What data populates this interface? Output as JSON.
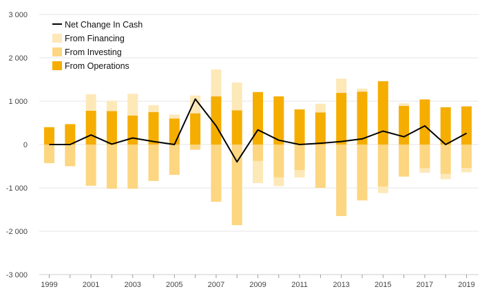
{
  "colors": {
    "operations": "#f5ad00",
    "investing": "#fcd680",
    "financing": "#fde8b8",
    "line": "#000000",
    "grid": "#e5e5e5"
  },
  "chart_data": {
    "type": "bar",
    "subtype": "stacked-bar-with-line",
    "title": "",
    "xlabel": "",
    "ylabel": "",
    "ylim": [
      -3000,
      3000
    ],
    "y_ticks": [
      3000,
      2000,
      1000,
      0,
      -1000,
      -2000,
      -3000
    ],
    "y_tick_labels": [
      "3 000",
      "2 000",
      "1 000",
      "0",
      "-1 000",
      "-2 000",
      "-3 000"
    ],
    "categories": [
      "1999",
      "2000",
      "2001",
      "2002",
      "2003",
      "2004",
      "2005",
      "2006",
      "2007",
      "2008",
      "2009",
      "2010",
      "2011",
      "2012",
      "2013",
      "2014",
      "2015",
      "2016",
      "2017",
      "2018",
      "2019"
    ],
    "x_tick_labels": [
      "1999",
      "2001",
      "2003",
      "2005",
      "2007",
      "2009",
      "2011",
      "2013",
      "2015",
      "2017",
      "2019"
    ],
    "legend_position": "top-left",
    "series": [
      {
        "name": "Net Change In Cash",
        "kind": "line",
        "values": [
          0,
          0,
          220,
          10,
          150,
          70,
          0,
          1050,
          430,
          -400,
          340,
          100,
          0,
          30,
          70,
          130,
          310,
          180,
          430,
          0,
          260
        ]
      },
      {
        "name": "From Financing",
        "kind": "bar",
        "values": [
          0,
          0,
          380,
          240,
          500,
          160,
          90,
          410,
          620,
          640,
          -510,
          -200,
          -170,
          200,
          330,
          70,
          -150,
          60,
          -100,
          -120,
          -100
        ]
      },
      {
        "name": "From Investing",
        "kind": "bar",
        "values": [
          -430,
          -500,
          -950,
          -1020,
          -1020,
          -840,
          -700,
          -120,
          -1320,
          -1860,
          -380,
          -760,
          -590,
          -1000,
          -1650,
          -1290,
          -970,
          -740,
          -550,
          -680,
          -540
        ]
      },
      {
        "name": "From Operations",
        "kind": "bar",
        "values": [
          400,
          470,
          780,
          770,
          670,
          750,
          600,
          720,
          1110,
          790,
          1210,
          1110,
          810,
          740,
          1190,
          1220,
          1460,
          890,
          1040,
          860,
          880
        ]
      }
    ]
  }
}
